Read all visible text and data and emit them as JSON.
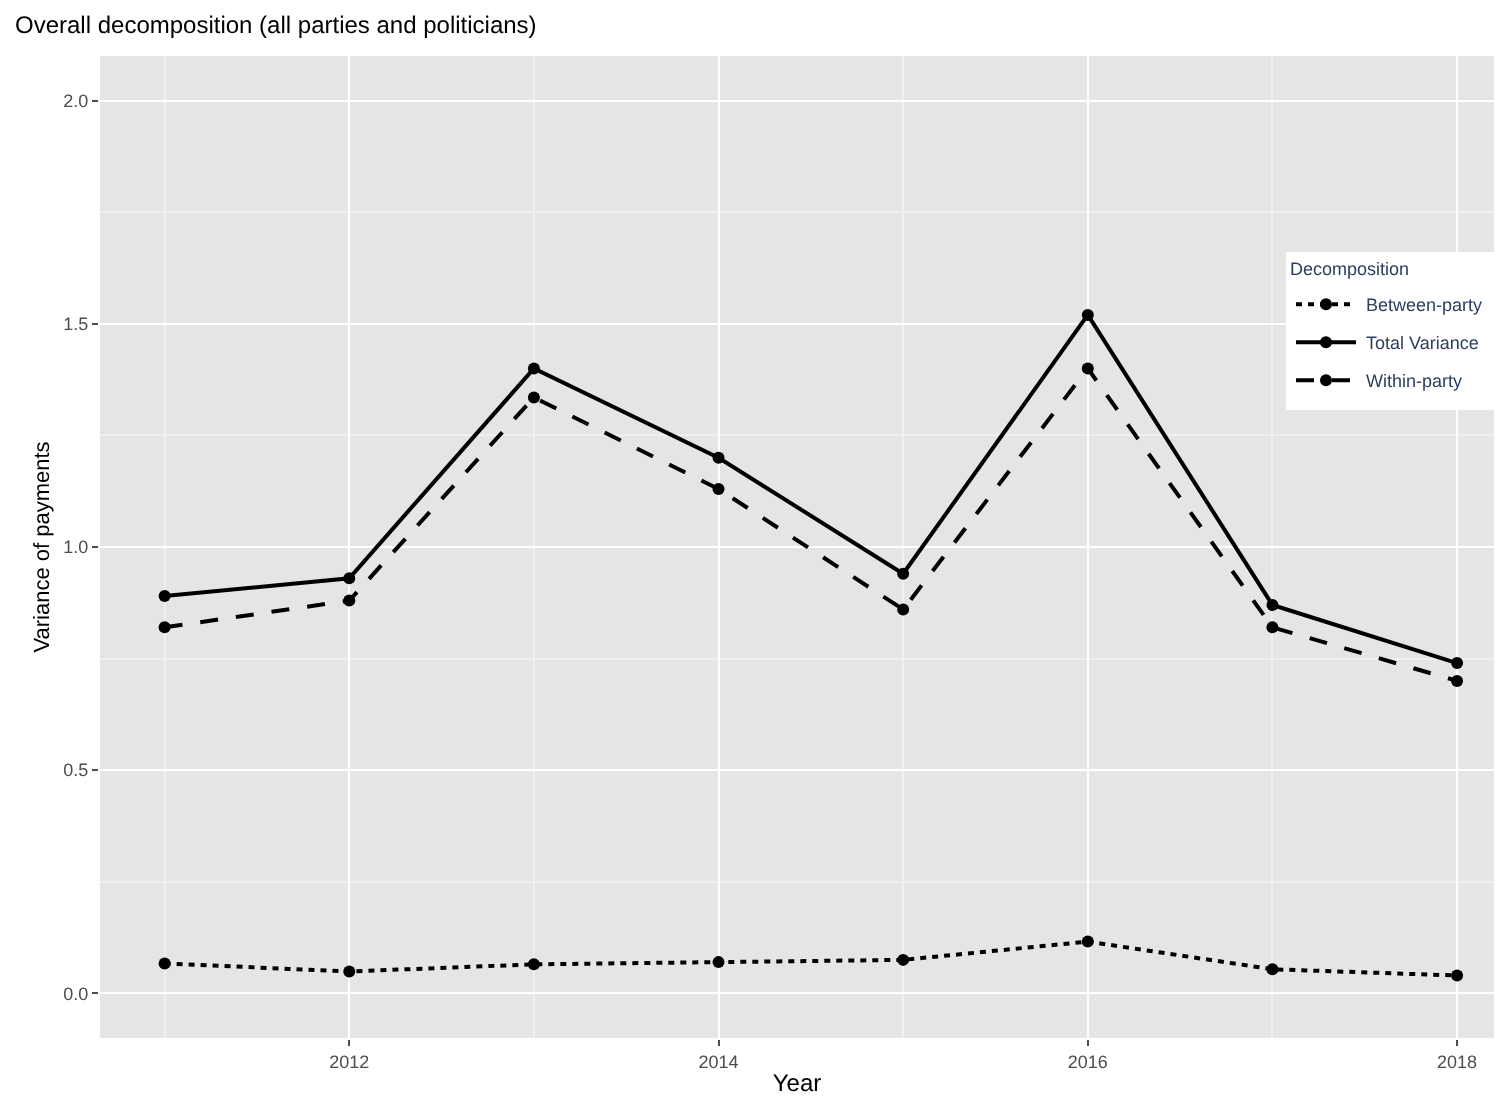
{
  "chart_data": {
    "type": "line",
    "title": "Overall decomposition (all parties and politicians)",
    "xlabel": "Year",
    "ylabel": "Variance of payments",
    "legend_title": "Decomposition",
    "x": [
      2011,
      2012,
      2013,
      2014,
      2015,
      2016,
      2017,
      2018
    ],
    "series": [
      {
        "name": "Between-party",
        "color": "#000000",
        "line_style": "dotted",
        "values": [
          0.067,
          0.049,
          0.065,
          0.07,
          0.075,
          0.116,
          0.054,
          0.04
        ]
      },
      {
        "name": "Total Variance",
        "color": "#000000",
        "line_style": "solid",
        "values": [
          0.89,
          0.93,
          1.4,
          1.2,
          0.94,
          1.52,
          0.87,
          0.74
        ]
      },
      {
        "name": "Within-party",
        "color": "#000000",
        "line_style": "dashed",
        "values": [
          0.82,
          0.88,
          1.335,
          1.13,
          0.86,
          1.4,
          0.82,
          0.7
        ]
      }
    ],
    "xlim": [
      2010.65,
      2018.2
    ],
    "xticks": [
      2012,
      2014,
      2016,
      2018
    ],
    "ylim": [
      -0.1,
      2.1
    ],
    "yticks": [
      {
        "value": 0,
        "label": "0.0"
      },
      {
        "value": 0.5,
        "label": "0.5"
      },
      {
        "value": 1,
        "label": "1.0"
      },
      {
        "value": 1.5,
        "label": "1.5"
      },
      {
        "value": 2,
        "label": "2.0"
      }
    ],
    "grid": true,
    "legend": "right",
    "marker": "circle"
  }
}
